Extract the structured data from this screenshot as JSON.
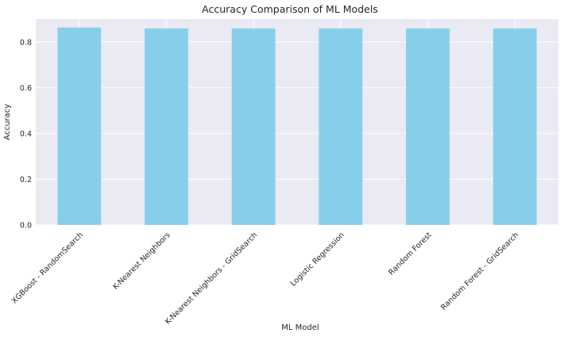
{
  "chart_data": {
    "type": "bar",
    "title": "Accuracy Comparison of ML Models",
    "xlabel": "ML Model",
    "ylabel": "Accuracy",
    "categories": [
      "XGBoost - RandomSearch",
      "K-Nearest Neighbors",
      "K-Nearest Neighbors - GridSearch",
      "Logistic Regression",
      "Random Forest",
      "Random Forest - GridSearch"
    ],
    "values": [
      0.863,
      0.859,
      0.859,
      0.859,
      0.859,
      0.859
    ],
    "ylim": [
      0,
      0.9
    ],
    "yticks": [
      0.0,
      0.2,
      0.4,
      0.6,
      0.8
    ],
    "ytick_labels": [
      "0.0",
      "0.2",
      "0.4",
      "0.6",
      "0.8"
    ],
    "grid": true,
    "colors": {
      "bar": "#87ceeb",
      "plot_background": "#eaeaf2",
      "grid": "#ffffff",
      "text": "#262626"
    }
  }
}
